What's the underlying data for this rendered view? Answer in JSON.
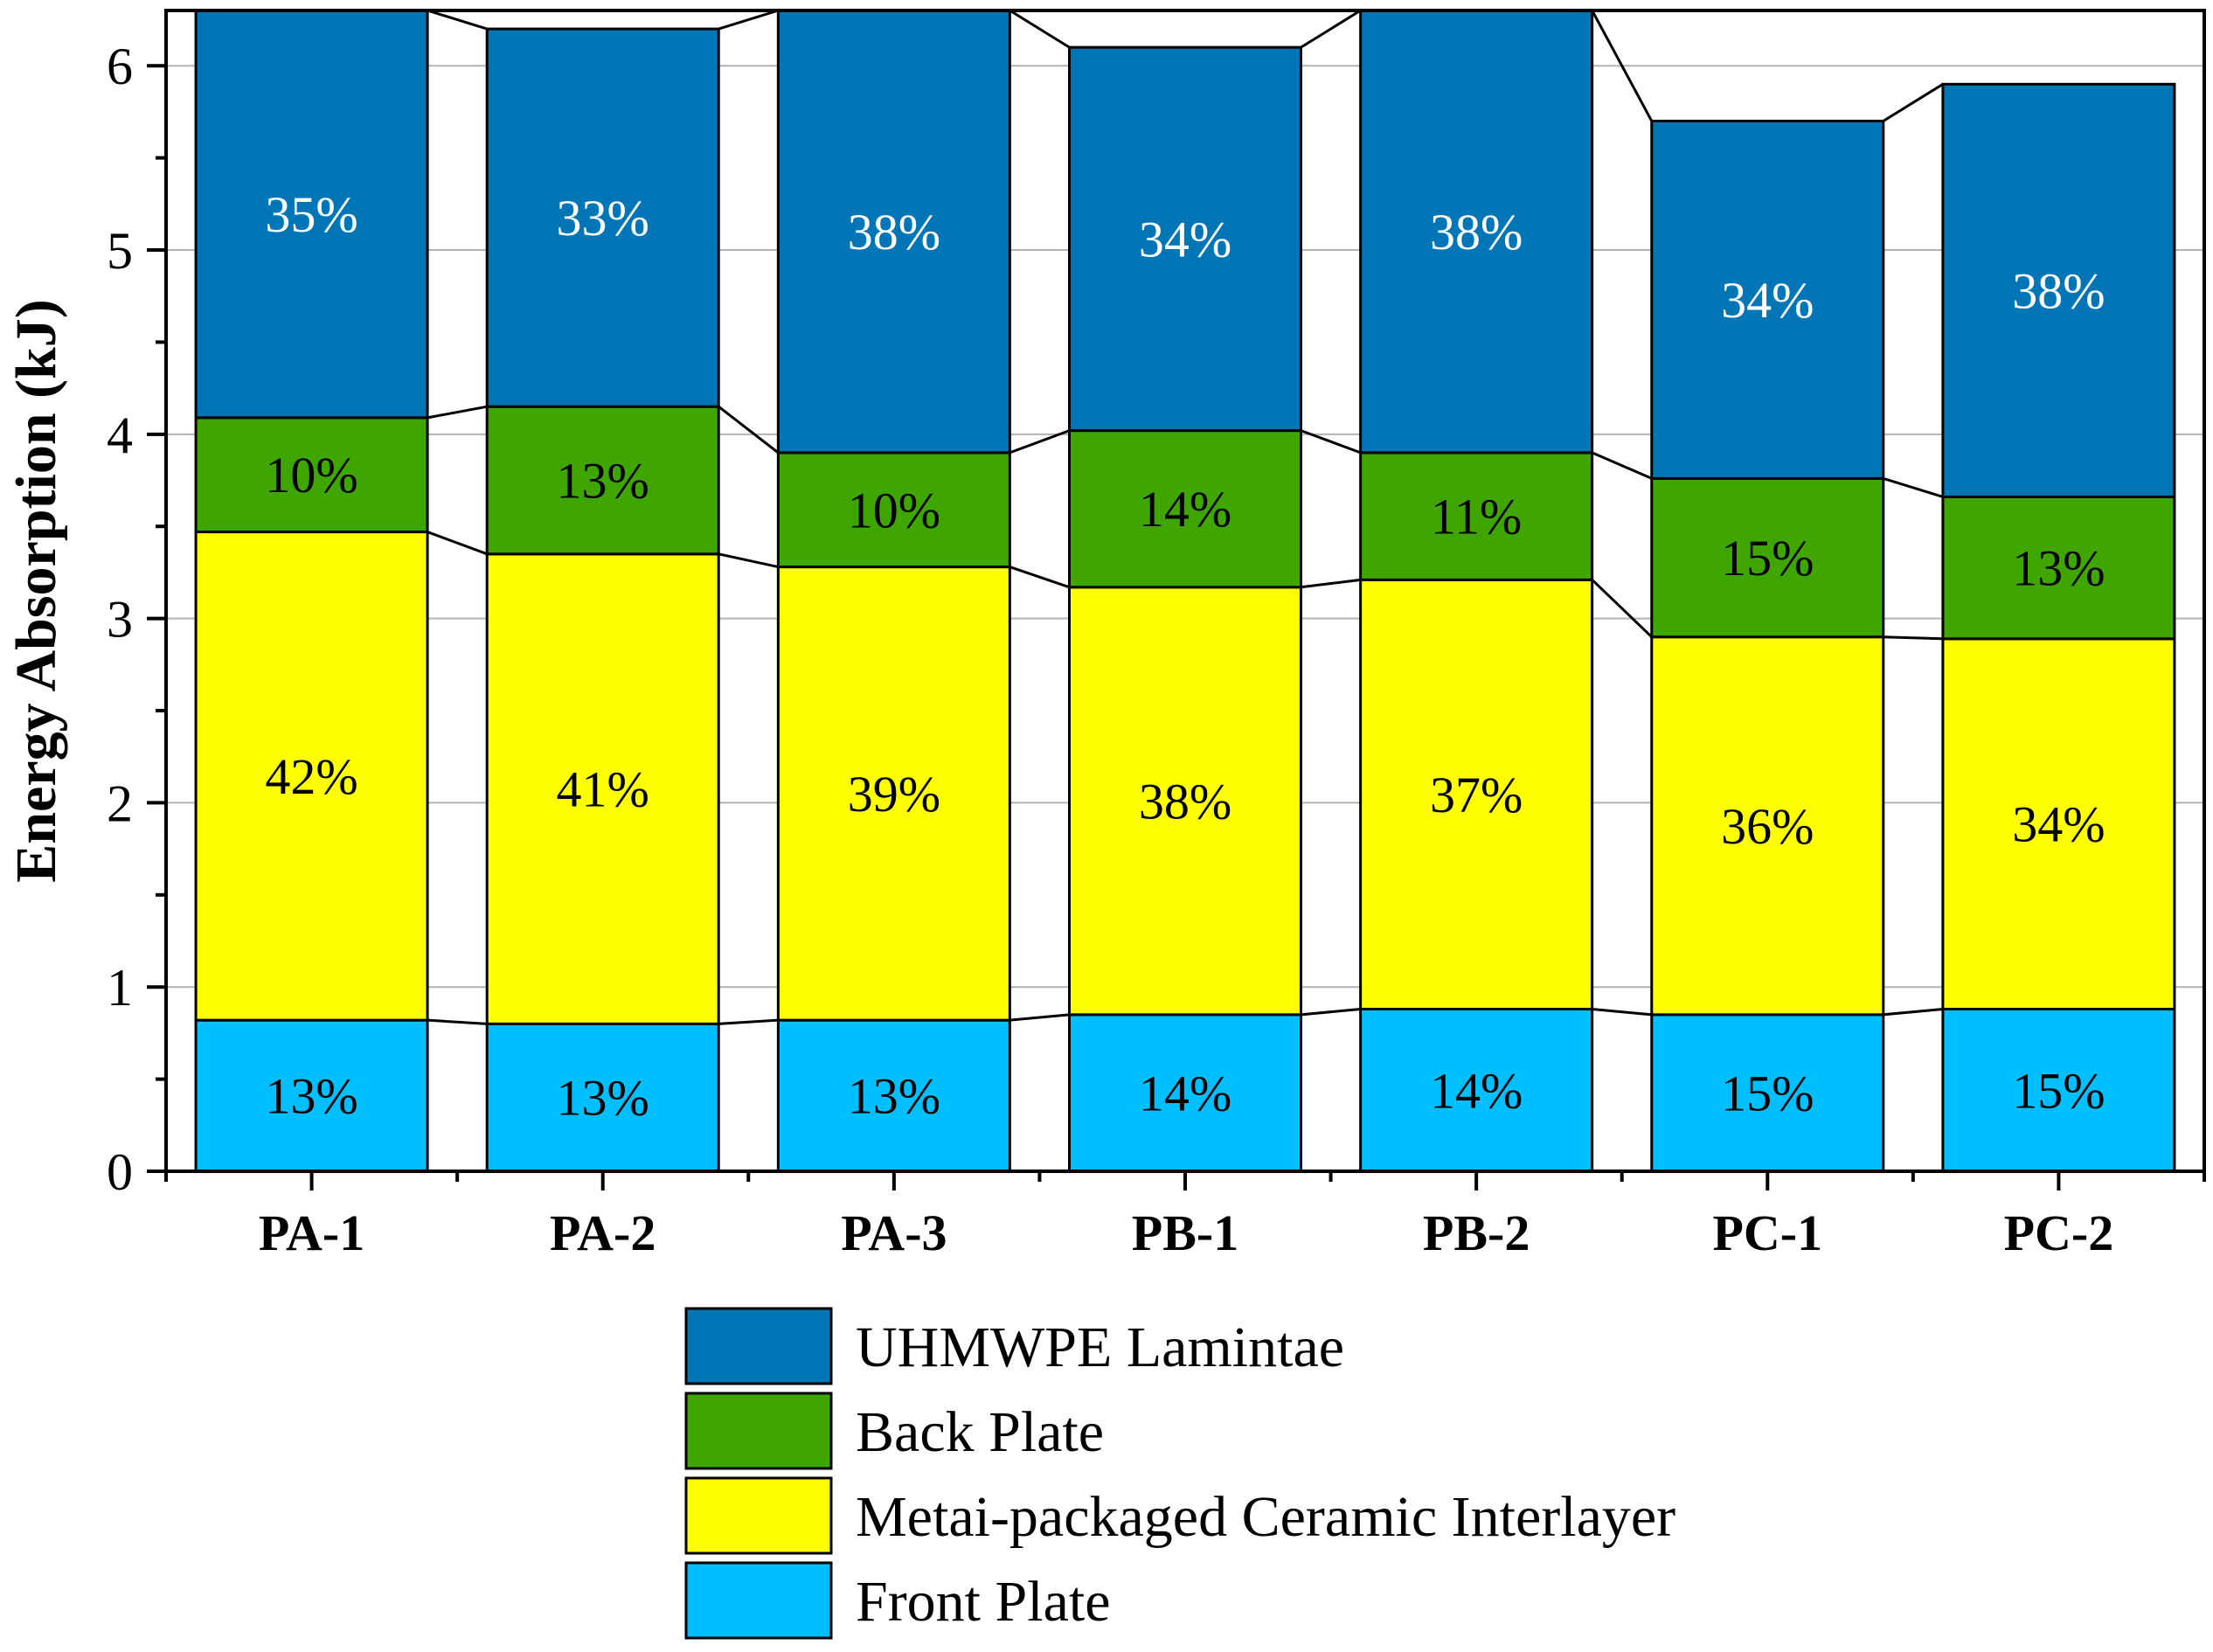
{
  "chart_data": {
    "type": "bar",
    "stacked": true,
    "title": "",
    "xlabel": "",
    "ylabel": "Energy Absorption (kJ)",
    "ylim": [
      0,
      6.3
    ],
    "yticks": [
      0,
      1,
      2,
      3,
      4,
      5,
      6
    ],
    "grid": "horizontal",
    "legend_position": "bottom",
    "categories": [
      "PA-1",
      "PA-2",
      "PA-3",
      "PB-1",
      "PB-2",
      "PC-1",
      "PC-2"
    ],
    "series": [
      {
        "name": "Front Plate",
        "color": "#00BFFF",
        "label_color": "#000000",
        "values": [
          0.82,
          0.8,
          0.82,
          0.85,
          0.88,
          0.85,
          0.88
        ],
        "labels": [
          "13%",
          "13%",
          "13%",
          "14%",
          "14%",
          "15%",
          "15%"
        ]
      },
      {
        "name": "Metai-packaged Ceramic Interlayer",
        "color": "#FFFF00",
        "label_color": "#000000",
        "values": [
          2.65,
          2.55,
          2.46,
          2.32,
          2.33,
          2.05,
          2.01
        ],
        "labels": [
          "42%",
          "41%",
          "39%",
          "38%",
          "37%",
          "36%",
          "34%"
        ]
      },
      {
        "name": "Back Plate",
        "color": "#3FA600",
        "label_color": "#000000",
        "values": [
          0.62,
          0.8,
          0.62,
          0.85,
          0.69,
          0.86,
          0.77
        ],
        "labels": [
          "10%",
          "13%",
          "10%",
          "14%",
          "11%",
          "15%",
          "13%"
        ]
      },
      {
        "name": "UHMWPE Lamintae",
        "color": "#0076B6",
        "label_color": "#FFFFFF",
        "values": [
          2.21,
          2.05,
          2.4,
          2.08,
          2.4,
          1.94,
          2.24
        ],
        "labels": [
          "35%",
          "33%",
          "38%",
          "34%",
          "38%",
          "34%",
          "38%"
        ]
      }
    ],
    "legend_order": [
      "UHMWPE Lamintae",
      "Back Plate",
      "Metai-packaged Ceramic Interlayer",
      "Front Plate"
    ]
  }
}
